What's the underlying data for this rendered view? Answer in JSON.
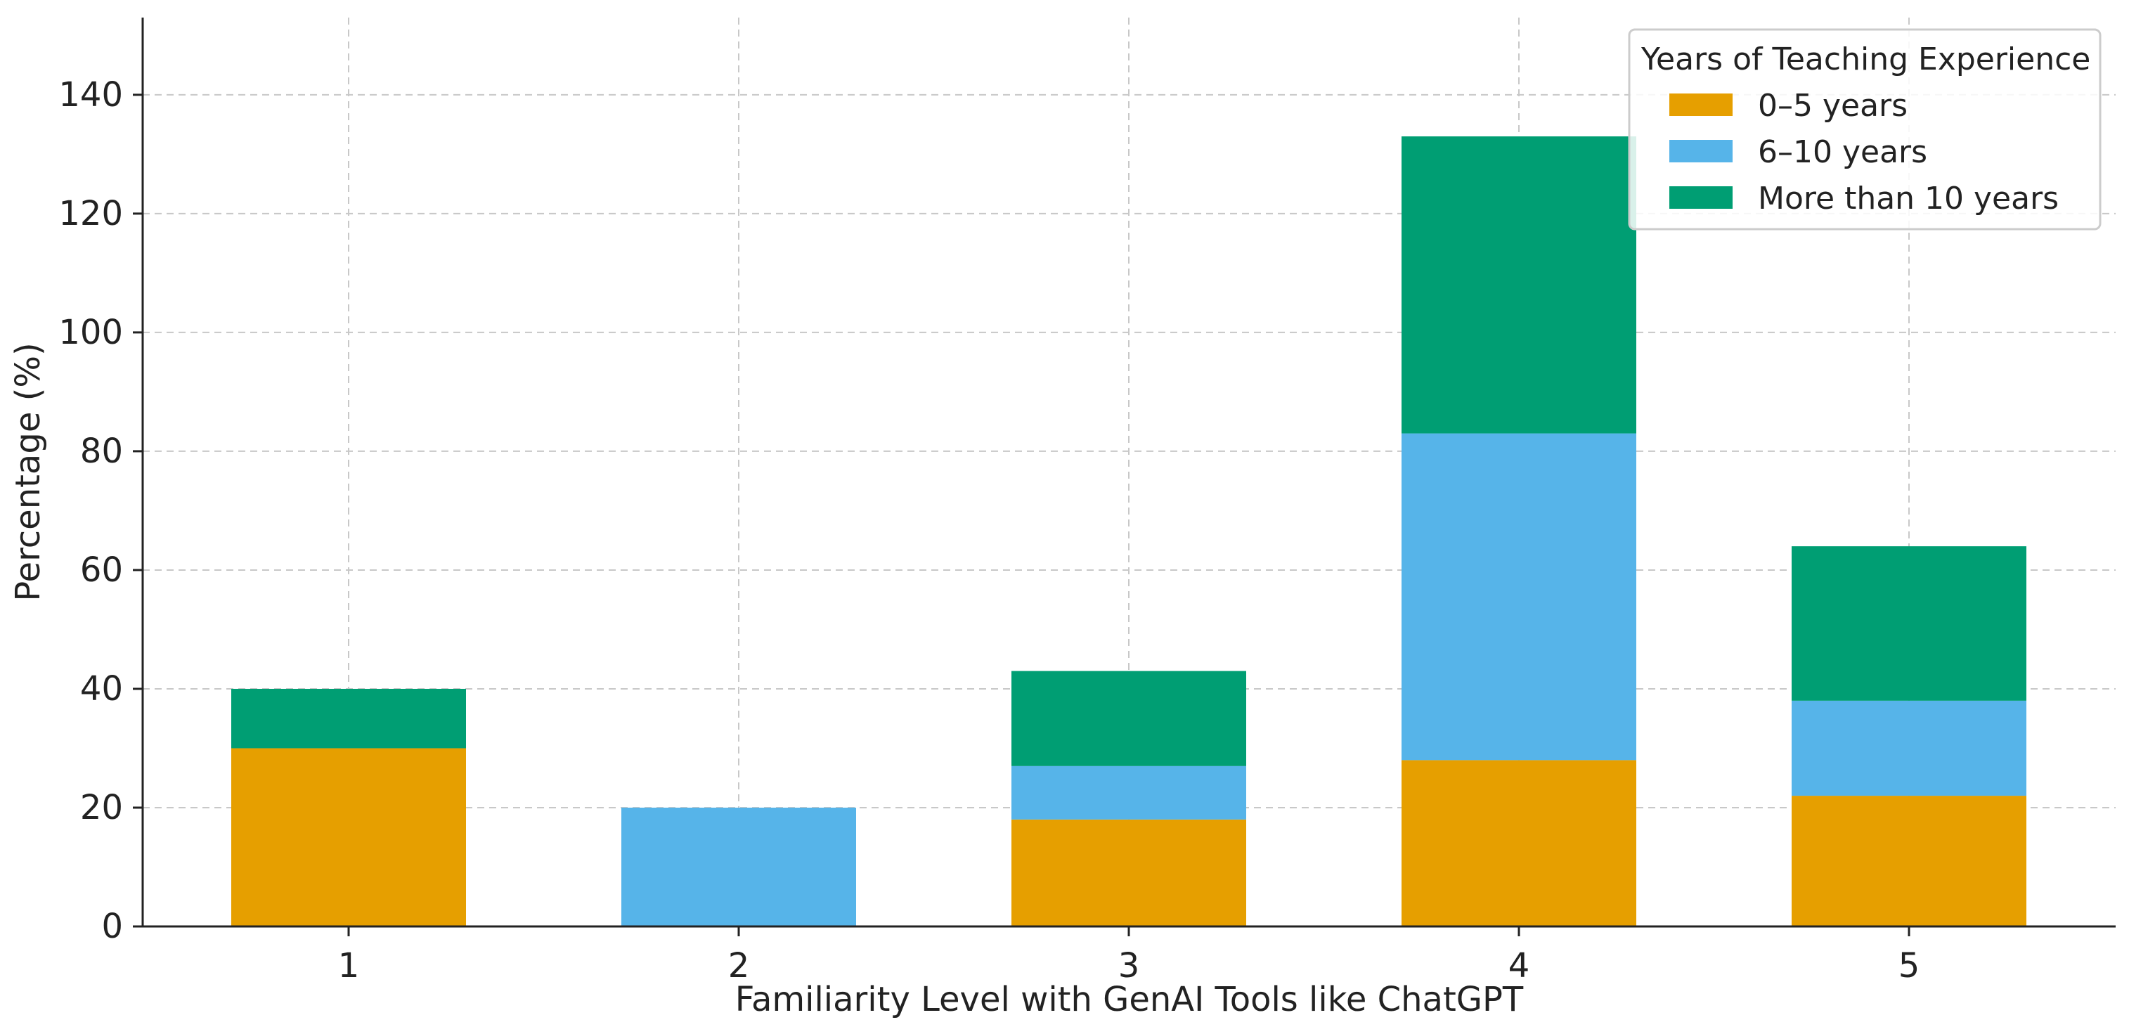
{
  "chart_data": {
    "type": "bar",
    "stacked": true,
    "title": "",
    "xlabel": "Familiarity Level with GenAI Tools like ChatGPT",
    "ylabel": "Percentage (%)",
    "categories": [
      "1",
      "2",
      "3",
      "4",
      "5"
    ],
    "series": [
      {
        "name": "0–5 years",
        "color": "#E69F00",
        "values": [
          30,
          0,
          18,
          28,
          22
        ]
      },
      {
        "name": "6–10 years",
        "color": "#56B4E9",
        "values": [
          0,
          20,
          9,
          55,
          16
        ]
      },
      {
        "name": "More than 10 years",
        "color": "#009E73",
        "values": [
          10,
          0,
          16,
          50,
          26
        ]
      }
    ],
    "ylim": [
      0,
      153
    ],
    "yticks": [
      0,
      20,
      40,
      60,
      80,
      100,
      120,
      140
    ],
    "grid": true,
    "legend": {
      "title": "Years of Teaching Experience",
      "position": "top-right"
    }
  }
}
